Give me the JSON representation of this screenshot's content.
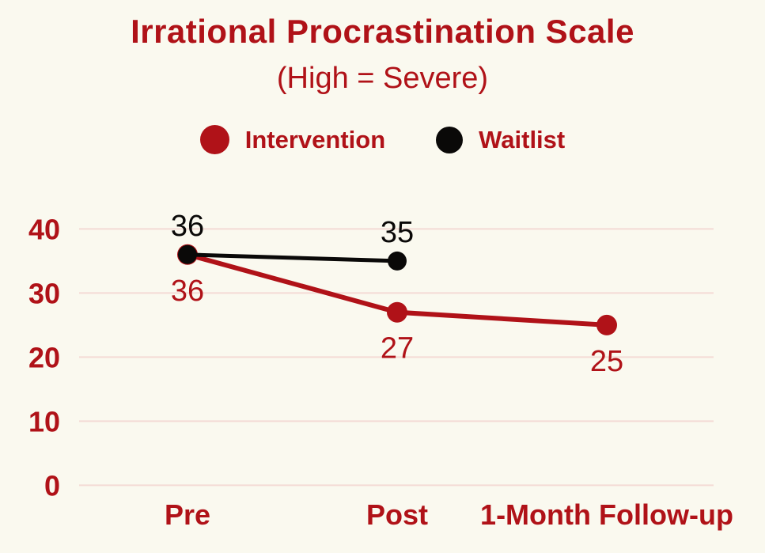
{
  "title": "Irrational Procrastination Scale",
  "subtitle": "(High = Severe)",
  "legend": [
    {
      "label": "Intervention",
      "color": "#B01218"
    },
    {
      "label": "Waitlist",
      "color": "#0A0908"
    }
  ],
  "colors": {
    "background": "#FAF9EF",
    "accent": "#B01218",
    "grid": "#F4DAD5",
    "black": "#0A0908"
  },
  "chart_data": {
    "type": "line",
    "title": "Irrational Procrastination Scale",
    "subtitle": "(High = Severe)",
    "categories": [
      "Pre",
      "Post",
      "1-Month Follow-up"
    ],
    "series": [
      {
        "name": "Intervention",
        "color": "#B01218",
        "values": [
          36,
          27,
          25
        ],
        "data_labels": [
          "36",
          "27",
          "25"
        ],
        "label_side": "below"
      },
      {
        "name": "Waitlist",
        "color": "#0A0908",
        "values": [
          36,
          35,
          null
        ],
        "data_labels": [
          "36",
          "35",
          null
        ],
        "label_side": "above"
      }
    ],
    "yticks": [
      0,
      10,
      20,
      30,
      40
    ],
    "ylim": [
      0,
      45
    ],
    "grid": "horizontal",
    "legend_position": "top"
  }
}
